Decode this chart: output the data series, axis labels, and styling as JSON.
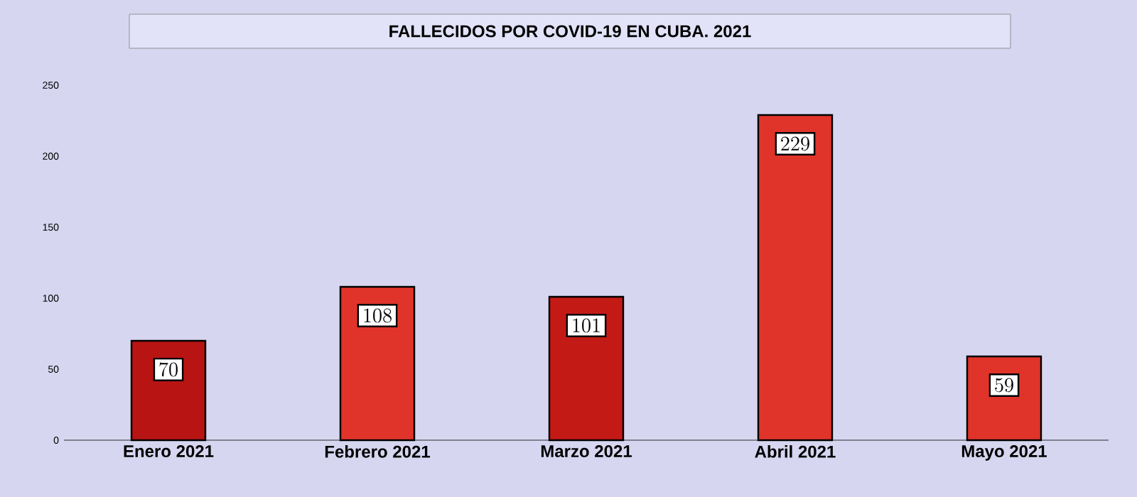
{
  "chart_data": {
    "type": "bar",
    "title": "FALLECIDOS POR COVID-19 EN CUBA. 2021",
    "categories": [
      "Enero 2021",
      "Febrero 2021",
      "Marzo 2021",
      "Abril 2021",
      "Mayo 2021"
    ],
    "values": [
      70,
      108,
      101,
      229,
      59
    ],
    "colors": [
      "#b81414",
      "#e0342a",
      "#c41a16",
      "#e0342a",
      "#e0342a"
    ],
    "ylim": [
      0,
      250
    ],
    "yticks": [
      0,
      50,
      100,
      150,
      200,
      250
    ],
    "data_labels": true
  }
}
